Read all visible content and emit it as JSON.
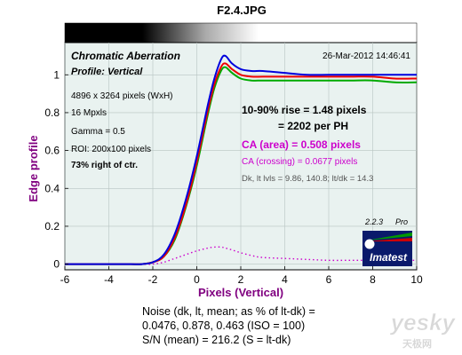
{
  "figure": {
    "filename": "F2.4.JPG",
    "colors": {
      "purple": "#800080",
      "magenta": "#cc00cc",
      "blue": "#0000dd",
      "red": "#ee0000",
      "green": "#00aa00",
      "frame_bg": "#e9f2f0"
    }
  },
  "panel": {
    "title": "Chromatic Aberration",
    "profile": "Profile: Vertical",
    "timestamp": "26-Mar-2012 14:46:41",
    "size": "4896 x 3264 pixels (WxH)",
    "mpxls": "16 Mpxls",
    "gamma": "Gamma = 0.5",
    "roi": "ROI: 200x100 pixels",
    "position": "73% right of ctr.",
    "rise": "10-90% rise = 1.48 pixels",
    "per_ph": "= 2202 per PH",
    "ca_area": "CA (area) = 0.508 pixels",
    "ca_crossing": "CA (crossing) = 0.0677 pixels",
    "levels": "Dk, lt lvls = 9.86, 140.8;  lt/dk = 14.3",
    "version": "2.2.3",
    "edition": "Pro",
    "logo_text": "Imatest"
  },
  "footer": {
    "line1": "Noise (dk, lt, mean; as % of lt-dk) =",
    "line2": "0.0476,  0.878,  0.463  (ISO =  100)",
    "line3": "S/N (mean) = 216.2  (S = lt-dk)"
  },
  "watermark": {
    "brand": "yesky",
    "tagline": "天极网"
  },
  "chart_data": {
    "type": "line",
    "title": "F2.4.JPG",
    "xlabel": "Pixels (Vertical)",
    "ylabel": "Edge profile",
    "xlim": [
      -6,
      10
    ],
    "ylim": [
      -0.03,
      1.17
    ],
    "x_ticks": [
      "-6",
      "-4",
      "-2",
      "0",
      "2",
      "4",
      "6",
      "8",
      "10"
    ],
    "y_ticks": [
      "0",
      "0.2",
      "0.4",
      "0.6",
      "0.8",
      "1"
    ],
    "x": [
      -6,
      -5,
      -4,
      -3,
      -2.5,
      -2,
      -1.5,
      -1,
      -0.5,
      0,
      0.5,
      0.8,
      1.1,
      1.3,
      1.6,
      2,
      2.5,
      3,
      4,
      5,
      6,
      7,
      8,
      9,
      10
    ],
    "series": [
      {
        "color": "blue",
        "values": [
          0.0,
          0.0,
          0.0,
          0.0,
          0.0,
          0.01,
          0.05,
          0.16,
          0.34,
          0.57,
          0.84,
          0.98,
          1.08,
          1.1,
          1.06,
          1.03,
          1.02,
          1.02,
          1.01,
          1.0,
          1.0,
          1.0,
          1.0,
          1.0,
          1.0
        ]
      },
      {
        "color": "red",
        "values": [
          0.0,
          0.0,
          0.0,
          0.0,
          0.0,
          0.01,
          0.04,
          0.14,
          0.31,
          0.54,
          0.81,
          0.95,
          1.04,
          1.06,
          1.03,
          1.0,
          0.99,
          0.99,
          0.99,
          0.99,
          0.99,
          0.99,
          0.99,
          0.98,
          0.98
        ]
      },
      {
        "color": "green",
        "values": [
          0.0,
          0.0,
          0.0,
          0.0,
          0.0,
          0.01,
          0.04,
          0.13,
          0.3,
          0.52,
          0.79,
          0.93,
          1.02,
          1.04,
          1.01,
          0.98,
          0.97,
          0.97,
          0.97,
          0.97,
          0.97,
          0.97,
          0.97,
          0.96,
          0.96
        ]
      },
      {
        "color": "magenta",
        "style": "dotted",
        "values": [
          0.0,
          0.0,
          0.0,
          0.0,
          0.0,
          0.0,
          0.01,
          0.03,
          0.05,
          0.07,
          0.085,
          0.09,
          0.09,
          0.085,
          0.075,
          0.06,
          0.045,
          0.035,
          0.03,
          0.025,
          0.02,
          0.02,
          0.02,
          0.02,
          0.02
        ]
      }
    ]
  }
}
